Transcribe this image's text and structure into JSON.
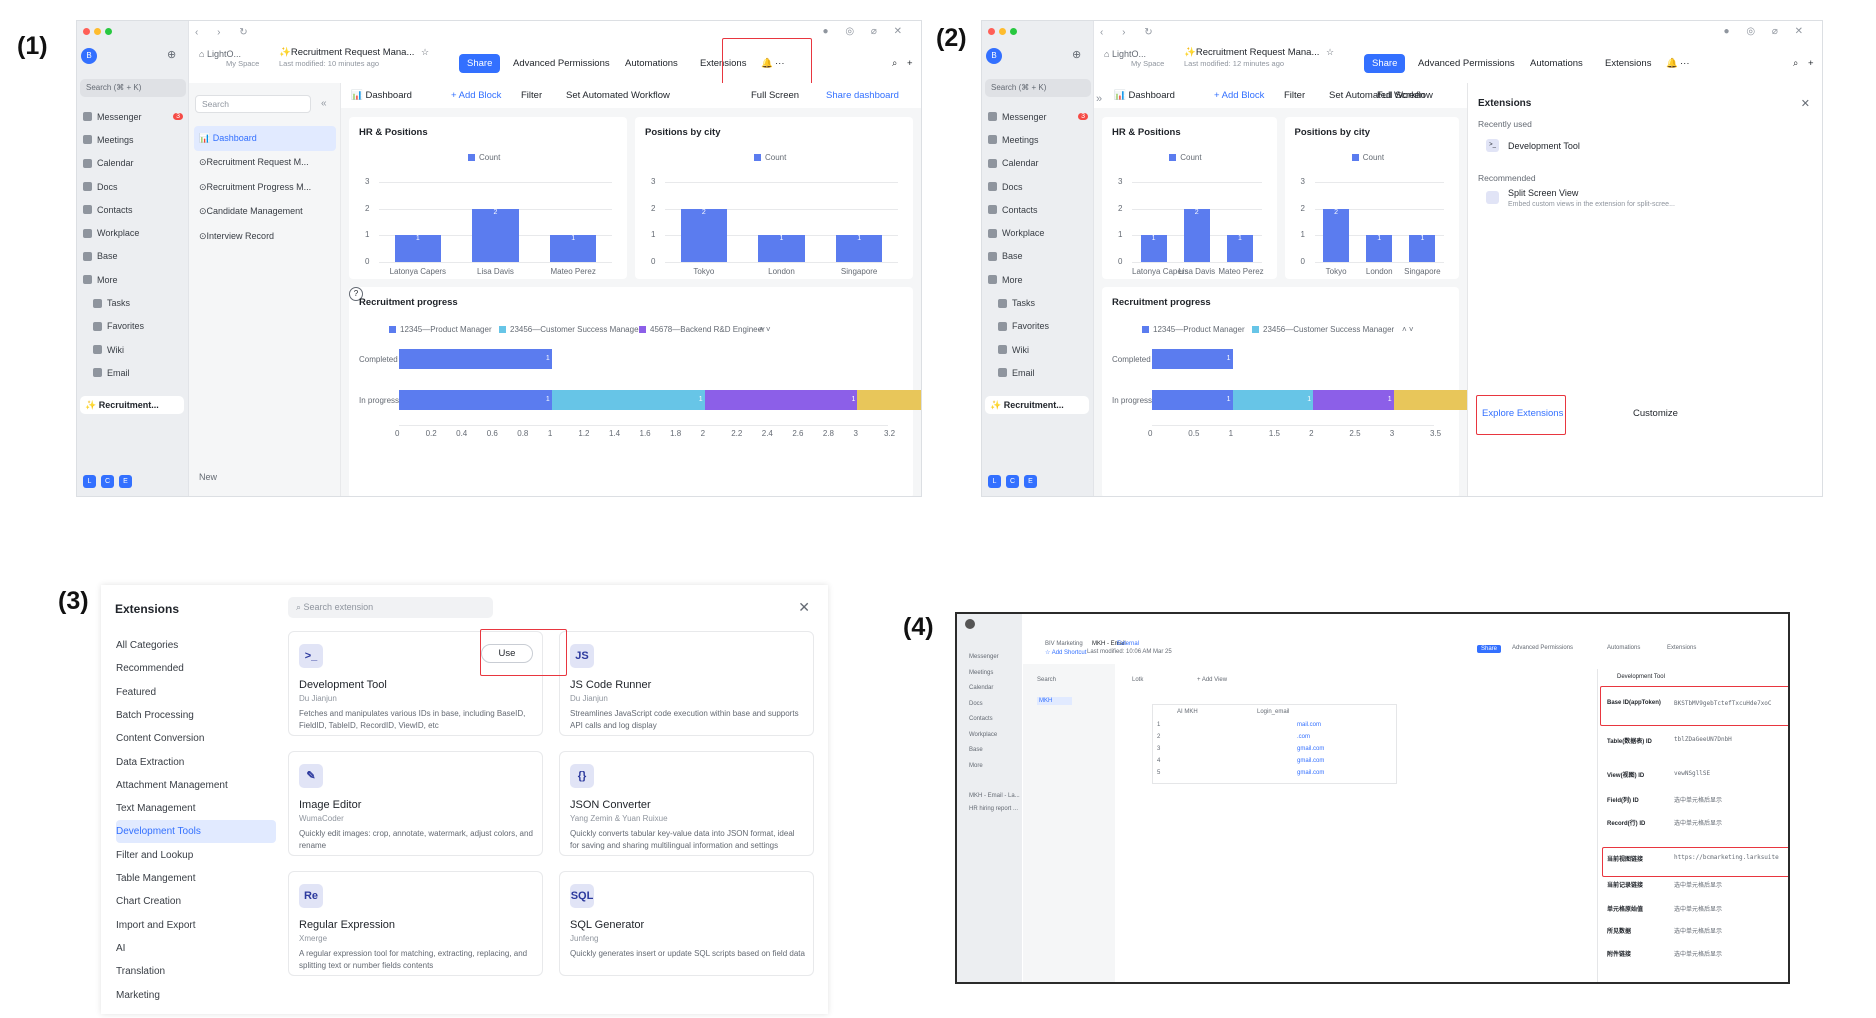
{
  "steps": {
    "s1": "(1)",
    "s2": "(2)",
    "s3": "(3)",
    "s4": "(4)"
  },
  "app": {
    "avatar": "B",
    "search": "Search (⌘ + K)",
    "nav": [
      "Messenger",
      "Meetings",
      "Calendar",
      "Docs",
      "Contacts",
      "Workplace",
      "Base",
      "More",
      "Tasks",
      "Favorites",
      "Wiki",
      "Email"
    ],
    "messenger_badge": "3",
    "recent": "✨ Recruitment...",
    "bottom_icons": [
      "L",
      "C",
      "E"
    ]
  },
  "header": {
    "breadcrumb_root": "LightO...",
    "space": "My Space",
    "title": "✨Recruitment Request Mana...",
    "modified1": "Last modified: 10 minutes ago",
    "modified2": "Last modified: 12 minutes ago",
    "share": "Share",
    "advanced": "Advanced Permissions",
    "automations": "Automations",
    "extensions": "Extensions",
    "more": "···"
  },
  "sidebar": {
    "search": "Search",
    "items": [
      "📊 Dashboard",
      "⊙Recruitment Request M...",
      "⊙Recruitment Progress M...",
      "⊙Candidate Management",
      "⊙Interview Record"
    ],
    "new": "New"
  },
  "toolbar": {
    "dashboard": "📊 Dashboard",
    "add_block": "+ Add Block",
    "filter": "Filter",
    "automated": "Set Automated Workflow",
    "fullscreen": "Full Screen",
    "share_dash": "Share dashboard"
  },
  "chart_data": [
    {
      "type": "bar",
      "title": "HR & Positions",
      "legend": [
        "Count"
      ],
      "categories": [
        "Latonya Capers",
        "Lisa Davis",
        "Mateo Perez"
      ],
      "values": [
        1,
        2,
        1
      ],
      "ylim": [
        0,
        3
      ],
      "yticks": [
        "0",
        "1",
        "2",
        "3"
      ]
    },
    {
      "type": "bar",
      "title": "Positions by city",
      "legend": [
        "Count"
      ],
      "categories": [
        "Tokyo",
        "London",
        "Singapore"
      ],
      "values": [
        2,
        1,
        1
      ],
      "ylim": [
        0,
        3
      ],
      "yticks": [
        "0",
        "1",
        "2",
        "3"
      ]
    },
    {
      "type": "bar",
      "title": "Recruitment progress",
      "orientation": "horizontal",
      "categories": [
        "Completed",
        "In progress"
      ],
      "series": [
        {
          "name": "12345—Product Manager",
          "values": [
            1,
            1
          ],
          "color": "#5b7cef"
        },
        {
          "name": "23456—Customer Success Manager",
          "values": [
            0,
            1
          ],
          "color": "#67c5e7"
        },
        {
          "name": "45678—Backend R&D Engineer",
          "values": [
            0,
            1
          ],
          "color": "#8c5fe8"
        },
        {
          "name": "",
          "values": [
            0,
            1
          ],
          "color": "#e8c65a"
        }
      ],
      "xticks1": [
        "0",
        "0.2",
        "0.4",
        "0.6",
        "0.8",
        "1",
        "1.2",
        "1.4",
        "1.6",
        "1.8",
        "2",
        "2.2",
        "2.4",
        "2.6",
        "2.8",
        "3",
        "3.2"
      ],
      "xticks2": [
        "0",
        "0.5",
        "1",
        "1.5",
        "2",
        "2.5",
        "3",
        "3.5"
      ]
    }
  ],
  "ext_panel": {
    "title": "Extensions",
    "recent_label": "Recently used",
    "recent_item": "Development Tool",
    "rec_label": "Recommended",
    "rec_item": "Split Screen View",
    "rec_desc": "Embed custom views in the extension for split-scree...",
    "explore": "Explore Extensions",
    "customize": "Customize"
  },
  "market": {
    "title": "Extensions",
    "search": "Search extension",
    "categories": [
      "All Categories",
      "Recommended",
      "Featured",
      "Batch Processing",
      "Content Conversion",
      "Data Extraction",
      "Attachment Management",
      "Text Management",
      "Development Tools",
      "Filter and Lookup",
      "Table Mangement",
      "Chart Creation",
      "Import and Export",
      "AI",
      "Translation",
      "Marketing"
    ],
    "use": "Use",
    "cards": [
      {
        "icon": ">_",
        "name": "Development Tool",
        "author": "Du Jianjun",
        "desc": "Fetches and manipulates various IDs in base, including BaseID, FieldID, TableID, RecordID, ViewID, etc"
      },
      {
        "icon": "JS",
        "name": "JS Code Runner",
        "author": "Du Jianjun",
        "desc": "Streamlines JavaScript code execution within base and supports API calls and log display"
      },
      {
        "icon": "✎",
        "name": "Image Editor",
        "author": "WumaCoder",
        "desc": "Quickly edit images: crop, annotate, watermark, adjust colors, and rename"
      },
      {
        "icon": "{}",
        "name": "JSON Converter",
        "author": "Yang Zemin & Yuan Ruixue",
        "desc": "Quickly converts tabular key-value data into JSON format, ideal for saving and sharing multilingual information and settings"
      },
      {
        "icon": "Re",
        "name": "Regular Expression",
        "author": "Xmerge",
        "desc": "A regular expression tool for matching, extracting, replacing, and splitting text or number fields contents"
      },
      {
        "icon": "SQL",
        "name": "SQL Generator",
        "author": "Junfeng",
        "desc": "Quickly generates insert or update SQL scripts based on field data"
      }
    ]
  },
  "shot4": {
    "title": "BIV Marketing",
    "doc": "MKH - Email",
    "tag": "External",
    "add_shortcut": "☆ Add Shortcut",
    "modified": "Last modified: 10:06 AM Mar 25",
    "share": "Share",
    "advanced": "Advanced Permissions",
    "automations": "Automations",
    "extensions": "Extensions",
    "search": "Search",
    "nav": [
      "Messenger",
      "Meetings",
      "Calendar",
      "Docs",
      "Contacts",
      "Workplace",
      "Base",
      "More"
    ],
    "recent": [
      "MKH - Email - La...",
      "HR hiring report ..."
    ],
    "side_item": "MKH",
    "tab": "Lotk",
    "add_view": "+ Add View",
    "col1": "AI MKH",
    "col2": "Login_email",
    "rows": [
      "1",
      "2",
      "3",
      "4",
      "5"
    ],
    "emails": [
      "mail.com",
      ".com",
      "gmail.com",
      "gmail.com",
      "gmail.com"
    ],
    "panel_title": "Development Tool",
    "fields": [
      "Base ID(appToken)",
      "Table(数据表) ID",
      "View(视图) ID",
      "Field(列) ID",
      "Record(行) ID",
      "当前视图链接",
      "当前记录链接",
      "单元格原始值",
      "所见数据",
      "附件链接"
    ],
    "values": [
      "BKSTbMV9gebTctefTxcuHde7xoC",
      "tblZDaGeeUN7DnbH",
      "vewNSgllSE",
      "选中单元格后显示",
      "选中单元格后显示",
      "https://bcmarketing.larksuite",
      "选中单元格后显示",
      "选中单元格后显示",
      "选中单元格后显示",
      "选中单元格后显示"
    ]
  }
}
